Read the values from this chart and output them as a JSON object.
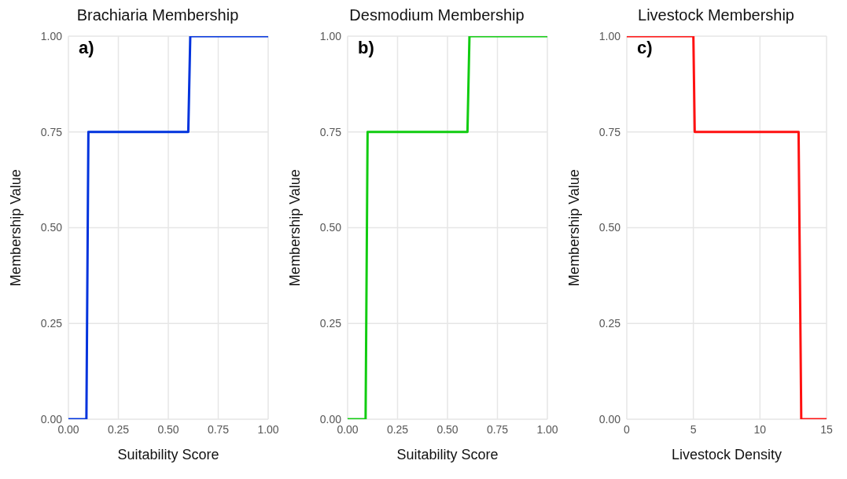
{
  "chart_data": [
    {
      "type": "line",
      "title": "Brachiaria Membership",
      "xlabel": "Suitability Score",
      "ylabel": "Membership Value",
      "annotations": [
        "a)"
      ],
      "xlim": [
        0,
        1
      ],
      "xticks": [
        {
          "value": 0,
          "label": "0.00"
        },
        {
          "value": 0.25,
          "label": "0.25"
        },
        {
          "value": 0.5,
          "label": "0.50"
        },
        {
          "value": 0.75,
          "label": "0.75"
        },
        {
          "value": 1,
          "label": "1.00"
        }
      ],
      "ylim": [
        0,
        1
      ],
      "yticks": [
        {
          "value": 0,
          "label": "0.00"
        },
        {
          "value": 0.25,
          "label": "0.25"
        },
        {
          "value": 0.5,
          "label": "0.50"
        },
        {
          "value": 0.75,
          "label": "0.75"
        },
        {
          "value": 1,
          "label": "1.00"
        }
      ],
      "grid": true,
      "legend": false,
      "series": [
        {
          "color": "#0033dd",
          "x": [
            0,
            0.09,
            0.1,
            0.6,
            0.61,
            1
          ],
          "values": [
            0,
            0,
            0.75,
            0.75,
            1,
            1
          ]
        }
      ]
    },
    {
      "type": "line",
      "title": "Desmodium Membership",
      "xlabel": "Suitability Score",
      "ylabel": "Membership Value",
      "annotations": [
        "b)"
      ],
      "xlim": [
        0,
        1
      ],
      "xticks": [
        {
          "value": 0,
          "label": "0.00"
        },
        {
          "value": 0.25,
          "label": "0.25"
        },
        {
          "value": 0.5,
          "label": "0.50"
        },
        {
          "value": 0.75,
          "label": "0.75"
        },
        {
          "value": 1,
          "label": "1.00"
        }
      ],
      "ylim": [
        0,
        1
      ],
      "yticks": [
        {
          "value": 0,
          "label": "0.00"
        },
        {
          "value": 0.25,
          "label": "0.25"
        },
        {
          "value": 0.5,
          "label": "0.50"
        },
        {
          "value": 0.75,
          "label": "0.75"
        },
        {
          "value": 1,
          "label": "1.00"
        }
      ],
      "grid": true,
      "legend": false,
      "series": [
        {
          "color": "#11cc11",
          "x": [
            0,
            0.09,
            0.1,
            0.6,
            0.61,
            1
          ],
          "values": [
            0,
            0,
            0.75,
            0.75,
            1,
            1
          ]
        }
      ]
    },
    {
      "type": "line",
      "title": "Livestock Membership",
      "xlabel": "Livestock Density",
      "ylabel": "Membership Value",
      "annotations": [
        "c)"
      ],
      "xlim": [
        0,
        15
      ],
      "xticks": [
        0,
        5,
        10,
        15
      ],
      "ylim": [
        0,
        1
      ],
      "yticks": [
        {
          "value": 0,
          "label": "0.00"
        },
        {
          "value": 0.25,
          "label": "0.25"
        },
        {
          "value": 0.5,
          "label": "0.50"
        },
        {
          "value": 0.75,
          "label": "0.75"
        },
        {
          "value": 1,
          "label": "1.00"
        }
      ],
      "grid": true,
      "legend": false,
      "series": [
        {
          "color": "#ff1111",
          "x": [
            0,
            5,
            5.1,
            12.9,
            13.1,
            15
          ],
          "values": [
            1,
            1,
            0.75,
            0.75,
            0,
            0
          ]
        }
      ]
    }
  ]
}
